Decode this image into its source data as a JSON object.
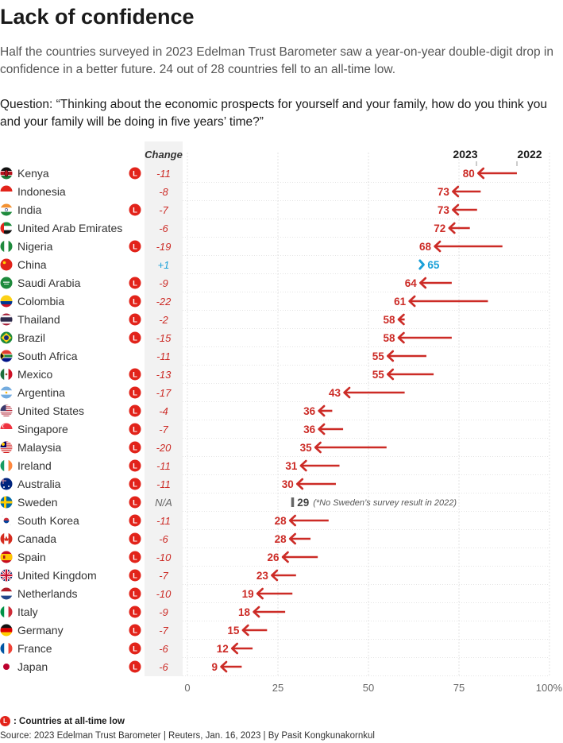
{
  "title": "Lack of confidence",
  "subtitle": "Half the countries surveyed in 2023 Edelman Trust Barometer saw a year-on-year double-digit drop in confidence in a better future. 24 out of 28 countries fell to an all-time low.",
  "question": "Question: “Thinking about the economic prospects for yourself and your family, how do you think you and your family will be doing in five years’ time?”",
  "legend": {
    "badge": "L",
    "label": ": Countries at all-time low"
  },
  "source": "Source: 2023 Edelman Trust Barometer | Reuters, Jan. 16, 2023 | By Pasit Kongkunakornkul",
  "colors": {
    "decline": "#cc2b26",
    "increase": "#1aa0d8",
    "neutral": "#666666",
    "badge": "#e2231a",
    "change_bg": "#f2f2f2"
  },
  "chart_data": {
    "type": "arrow-dumbbell",
    "change_header": "Change",
    "year_labels": {
      "current": "2023",
      "previous": "2022"
    },
    "x_ticks": [
      "0",
      "25",
      "50",
      "75",
      "100%"
    ],
    "xlim": [
      0,
      100
    ],
    "note": "(*No Sweden’s survey result in 2022)",
    "rows": [
      {
        "country": "Kenya",
        "flag": "kenya-flag",
        "v2023": 80,
        "v2022": 91,
        "change": "-11",
        "low": true
      },
      {
        "country": "Indonesia",
        "flag": "indonesia-flag",
        "v2023": 73,
        "v2022": 81,
        "change": "-8",
        "low": false
      },
      {
        "country": "India",
        "flag": "india-flag",
        "v2023": 73,
        "v2022": 80,
        "change": "-7",
        "low": true
      },
      {
        "country": "United Arab Emirates",
        "flag": "uae-flag",
        "v2023": 72,
        "v2022": 78,
        "change": "-6",
        "low": false
      },
      {
        "country": "Nigeria",
        "flag": "nigeria-flag",
        "v2023": 68,
        "v2022": 87,
        "change": "-19",
        "low": true
      },
      {
        "country": "China",
        "flag": "china-flag",
        "v2023": 65,
        "v2022": 64,
        "change": "+1",
        "low": false
      },
      {
        "country": "Saudi Arabia",
        "flag": "saudi-arabia-flag",
        "v2023": 64,
        "v2022": 73,
        "change": "-9",
        "low": true
      },
      {
        "country": "Colombia",
        "flag": "colombia-flag",
        "v2023": 61,
        "v2022": 83,
        "change": "-22",
        "low": true
      },
      {
        "country": "Thailand",
        "flag": "thailand-flag",
        "v2023": 58,
        "v2022": 60,
        "change": "-2",
        "low": true
      },
      {
        "country": "Brazil",
        "flag": "brazil-flag",
        "v2023": 58,
        "v2022": 73,
        "change": "-15",
        "low": true
      },
      {
        "country": "South Africa",
        "flag": "south-africa-flag",
        "v2023": 55,
        "v2022": 66,
        "change": "-11",
        "low": false
      },
      {
        "country": "Mexico",
        "flag": "mexico-flag",
        "v2023": 55,
        "v2022": 68,
        "change": "-13",
        "low": true
      },
      {
        "country": "Argentina",
        "flag": "argentina-flag",
        "v2023": 43,
        "v2022": 60,
        "change": "-17",
        "low": true
      },
      {
        "country": "United States",
        "flag": "united-states-flag",
        "v2023": 36,
        "v2022": 40,
        "change": "-4",
        "low": true
      },
      {
        "country": "Singapore",
        "flag": "singapore-flag",
        "v2023": 36,
        "v2022": 43,
        "change": "-7",
        "low": true
      },
      {
        "country": "Malaysia",
        "flag": "malaysia-flag",
        "v2023": 35,
        "v2022": 55,
        "change": "-20",
        "low": true
      },
      {
        "country": "Ireland",
        "flag": "ireland-flag",
        "v2023": 31,
        "v2022": 42,
        "change": "-11",
        "low": true
      },
      {
        "country": "Australia",
        "flag": "australia-flag",
        "v2023": 30,
        "v2022": 41,
        "change": "-11",
        "low": true
      },
      {
        "country": "Sweden",
        "flag": "sweden-flag",
        "v2023": 29,
        "v2022": null,
        "change": "N/A",
        "low": true
      },
      {
        "country": "South Korea",
        "flag": "south-korea-flag",
        "v2023": 28,
        "v2022": 39,
        "change": "-11",
        "low": true
      },
      {
        "country": "Canada",
        "flag": "canada-flag",
        "v2023": 28,
        "v2022": 34,
        "change": "-6",
        "low": true
      },
      {
        "country": "Spain",
        "flag": "spain-flag",
        "v2023": 26,
        "v2022": 36,
        "change": "-10",
        "low": true
      },
      {
        "country": "United Kingdom",
        "flag": "united-kingdom-flag",
        "v2023": 23,
        "v2022": 30,
        "change": "-7",
        "low": true
      },
      {
        "country": "Netherlands",
        "flag": "netherlands-flag",
        "v2023": 19,
        "v2022": 29,
        "change": "-10",
        "low": true
      },
      {
        "country": "Italy",
        "flag": "italy-flag",
        "v2023": 18,
        "v2022": 27,
        "change": "-9",
        "low": true
      },
      {
        "country": "Germany",
        "flag": "germany-flag",
        "v2023": 15,
        "v2022": 22,
        "change": "-7",
        "low": true
      },
      {
        "country": "France",
        "flag": "france-flag",
        "v2023": 12,
        "v2022": 18,
        "change": "-6",
        "low": true
      },
      {
        "country": "Japan",
        "flag": "japan-flag",
        "v2023": 9,
        "v2022": 15,
        "change": "-6",
        "low": true
      }
    ]
  }
}
